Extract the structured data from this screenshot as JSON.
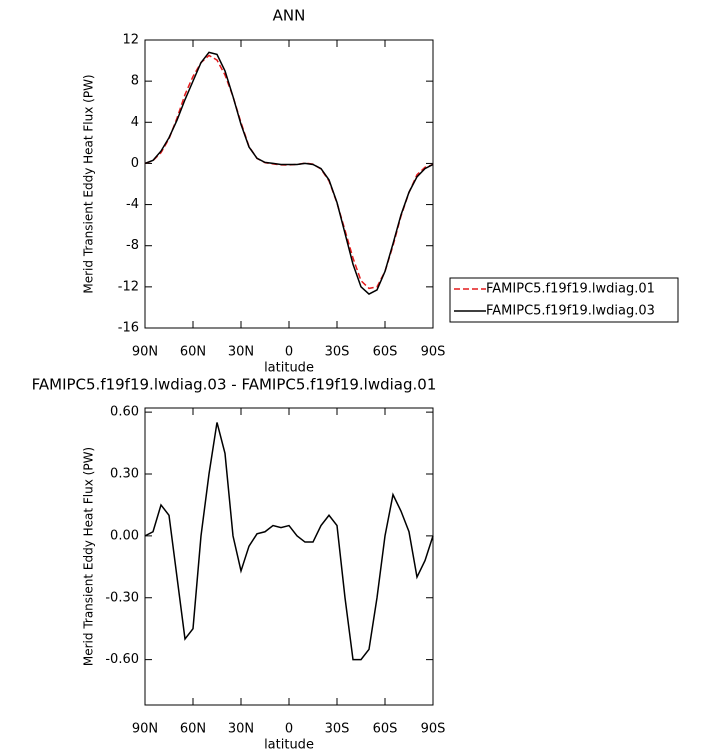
{
  "chart_data": [
    {
      "type": "line",
      "title": "ANN",
      "x_label": "latitude",
      "y_label": "Merid Transient Eddy Heat Flux (PW)",
      "x": [
        90,
        85,
        80,
        75,
        70,
        65,
        60,
        55,
        50,
        45,
        40,
        35,
        30,
        25,
        20,
        15,
        10,
        5,
        0,
        -5,
        -10,
        -15,
        -20,
        -25,
        -30,
        -35,
        -40,
        -45,
        -50,
        -55,
        -60,
        -65,
        -70,
        -75,
        -80,
        -85,
        -90
      ],
      "series": [
        {
          "name": "FAMIPC5.f19f19.lwdiag.01",
          "color": "#e41a1c",
          "linestyle": "dashed",
          "values": [
            0,
            0.28,
            1.05,
            2.4,
            4.4,
            6.7,
            8.45,
            9.8,
            10.5,
            10.05,
            8.6,
            6.5,
            3.97,
            1.65,
            0.49,
            0.08,
            -0.05,
            -0.14,
            -0.15,
            -0.1,
            0.03,
            -0.07,
            -0.55,
            -1.7,
            -3.85,
            -6.5,
            -9.2,
            -11.4,
            -12.15,
            -12.0,
            -10.5,
            -8.0,
            -5.12,
            -2.82,
            -1.1,
            -0.38,
            -0.1
          ]
        },
        {
          "name": "FAMIPC5.f19f19.lwdiag.03",
          "color": "#000000",
          "linestyle": "solid",
          "values": [
            0,
            0.3,
            1.2,
            2.5,
            4.2,
            6.2,
            8.0,
            9.8,
            10.8,
            10.6,
            9.0,
            6.5,
            3.8,
            1.6,
            0.5,
            0.1,
            0,
            -0.1,
            -0.1,
            -0.1,
            0,
            -0.1,
            -0.5,
            -1.6,
            -3.8,
            -6.8,
            -9.8,
            -12.0,
            -12.7,
            -12.3,
            -10.5,
            -7.8,
            -5.0,
            -2.8,
            -1.3,
            -0.5,
            -0.1
          ]
        }
      ],
      "xlim": [
        90,
        -90
      ],
      "xticks": [
        {
          "value": 90,
          "label": "90N"
        },
        {
          "value": 60,
          "label": "60N"
        },
        {
          "value": 30,
          "label": "30N"
        },
        0,
        {
          "value": -30,
          "label": "30S"
        },
        {
          "value": -60,
          "label": "60S"
        },
        {
          "value": -90,
          "label": "90S"
        }
      ],
      "ylim": [
        -16,
        12
      ],
      "yticks": [
        12,
        8,
        4,
        0,
        -4,
        -8,
        -12,
        -16
      ],
      "legend": "right"
    },
    {
      "type": "line",
      "title": "FAMIPC5.f19f19.lwdiag.03 - FAMIPC5.f19f19.lwdiag.01",
      "x_label": "latitude",
      "y_label": "Merid Transient Eddy Heat Flux (PW)",
      "x": [
        90,
        85,
        80,
        75,
        70,
        65,
        60,
        55,
        50,
        45,
        40,
        35,
        30,
        25,
        20,
        15,
        10,
        5,
        0,
        -5,
        -10,
        -15,
        -20,
        -25,
        -30,
        -35,
        -40,
        -45,
        -50,
        -55,
        -60,
        -65,
        -70,
        -75,
        -80,
        -85,
        -90
      ],
      "values": [
        0,
        0.02,
        0.15,
        0.1,
        -0.2,
        -0.5,
        -0.45,
        0.0,
        0.3,
        0.55,
        0.4,
        0.0,
        -0.17,
        -0.05,
        0.01,
        0.02,
        0.05,
        0.04,
        0.05,
        0.0,
        -0.03,
        -0.03,
        0.05,
        0.1,
        0.05,
        -0.3,
        -0.6,
        -0.6,
        -0.55,
        -0.3,
        0.0,
        0.2,
        0.12,
        0.02,
        -0.2,
        -0.12,
        0
      ],
      "color": "#000000",
      "xlim": [
        90,
        -90
      ],
      "xticks": [
        {
          "value": 90,
          "label": "90N"
        },
        {
          "value": 60,
          "label": "60N"
        },
        {
          "value": 30,
          "label": "30N"
        },
        0,
        {
          "value": -30,
          "label": "30S"
        },
        {
          "value": -60,
          "label": "60S"
        },
        {
          "value": -90,
          "label": "90S"
        }
      ],
      "ylim": [
        -0.82,
        0.62
      ],
      "yticks": [
        {
          "value": 0.6,
          "label": "0.60"
        },
        {
          "value": 0.3,
          "label": "0.30"
        },
        {
          "value": 0,
          "label": "0.00"
        },
        {
          "value": -0.3,
          "label": "-0.30"
        },
        {
          "value": -0.6,
          "label": "-0.60"
        }
      ]
    }
  ]
}
